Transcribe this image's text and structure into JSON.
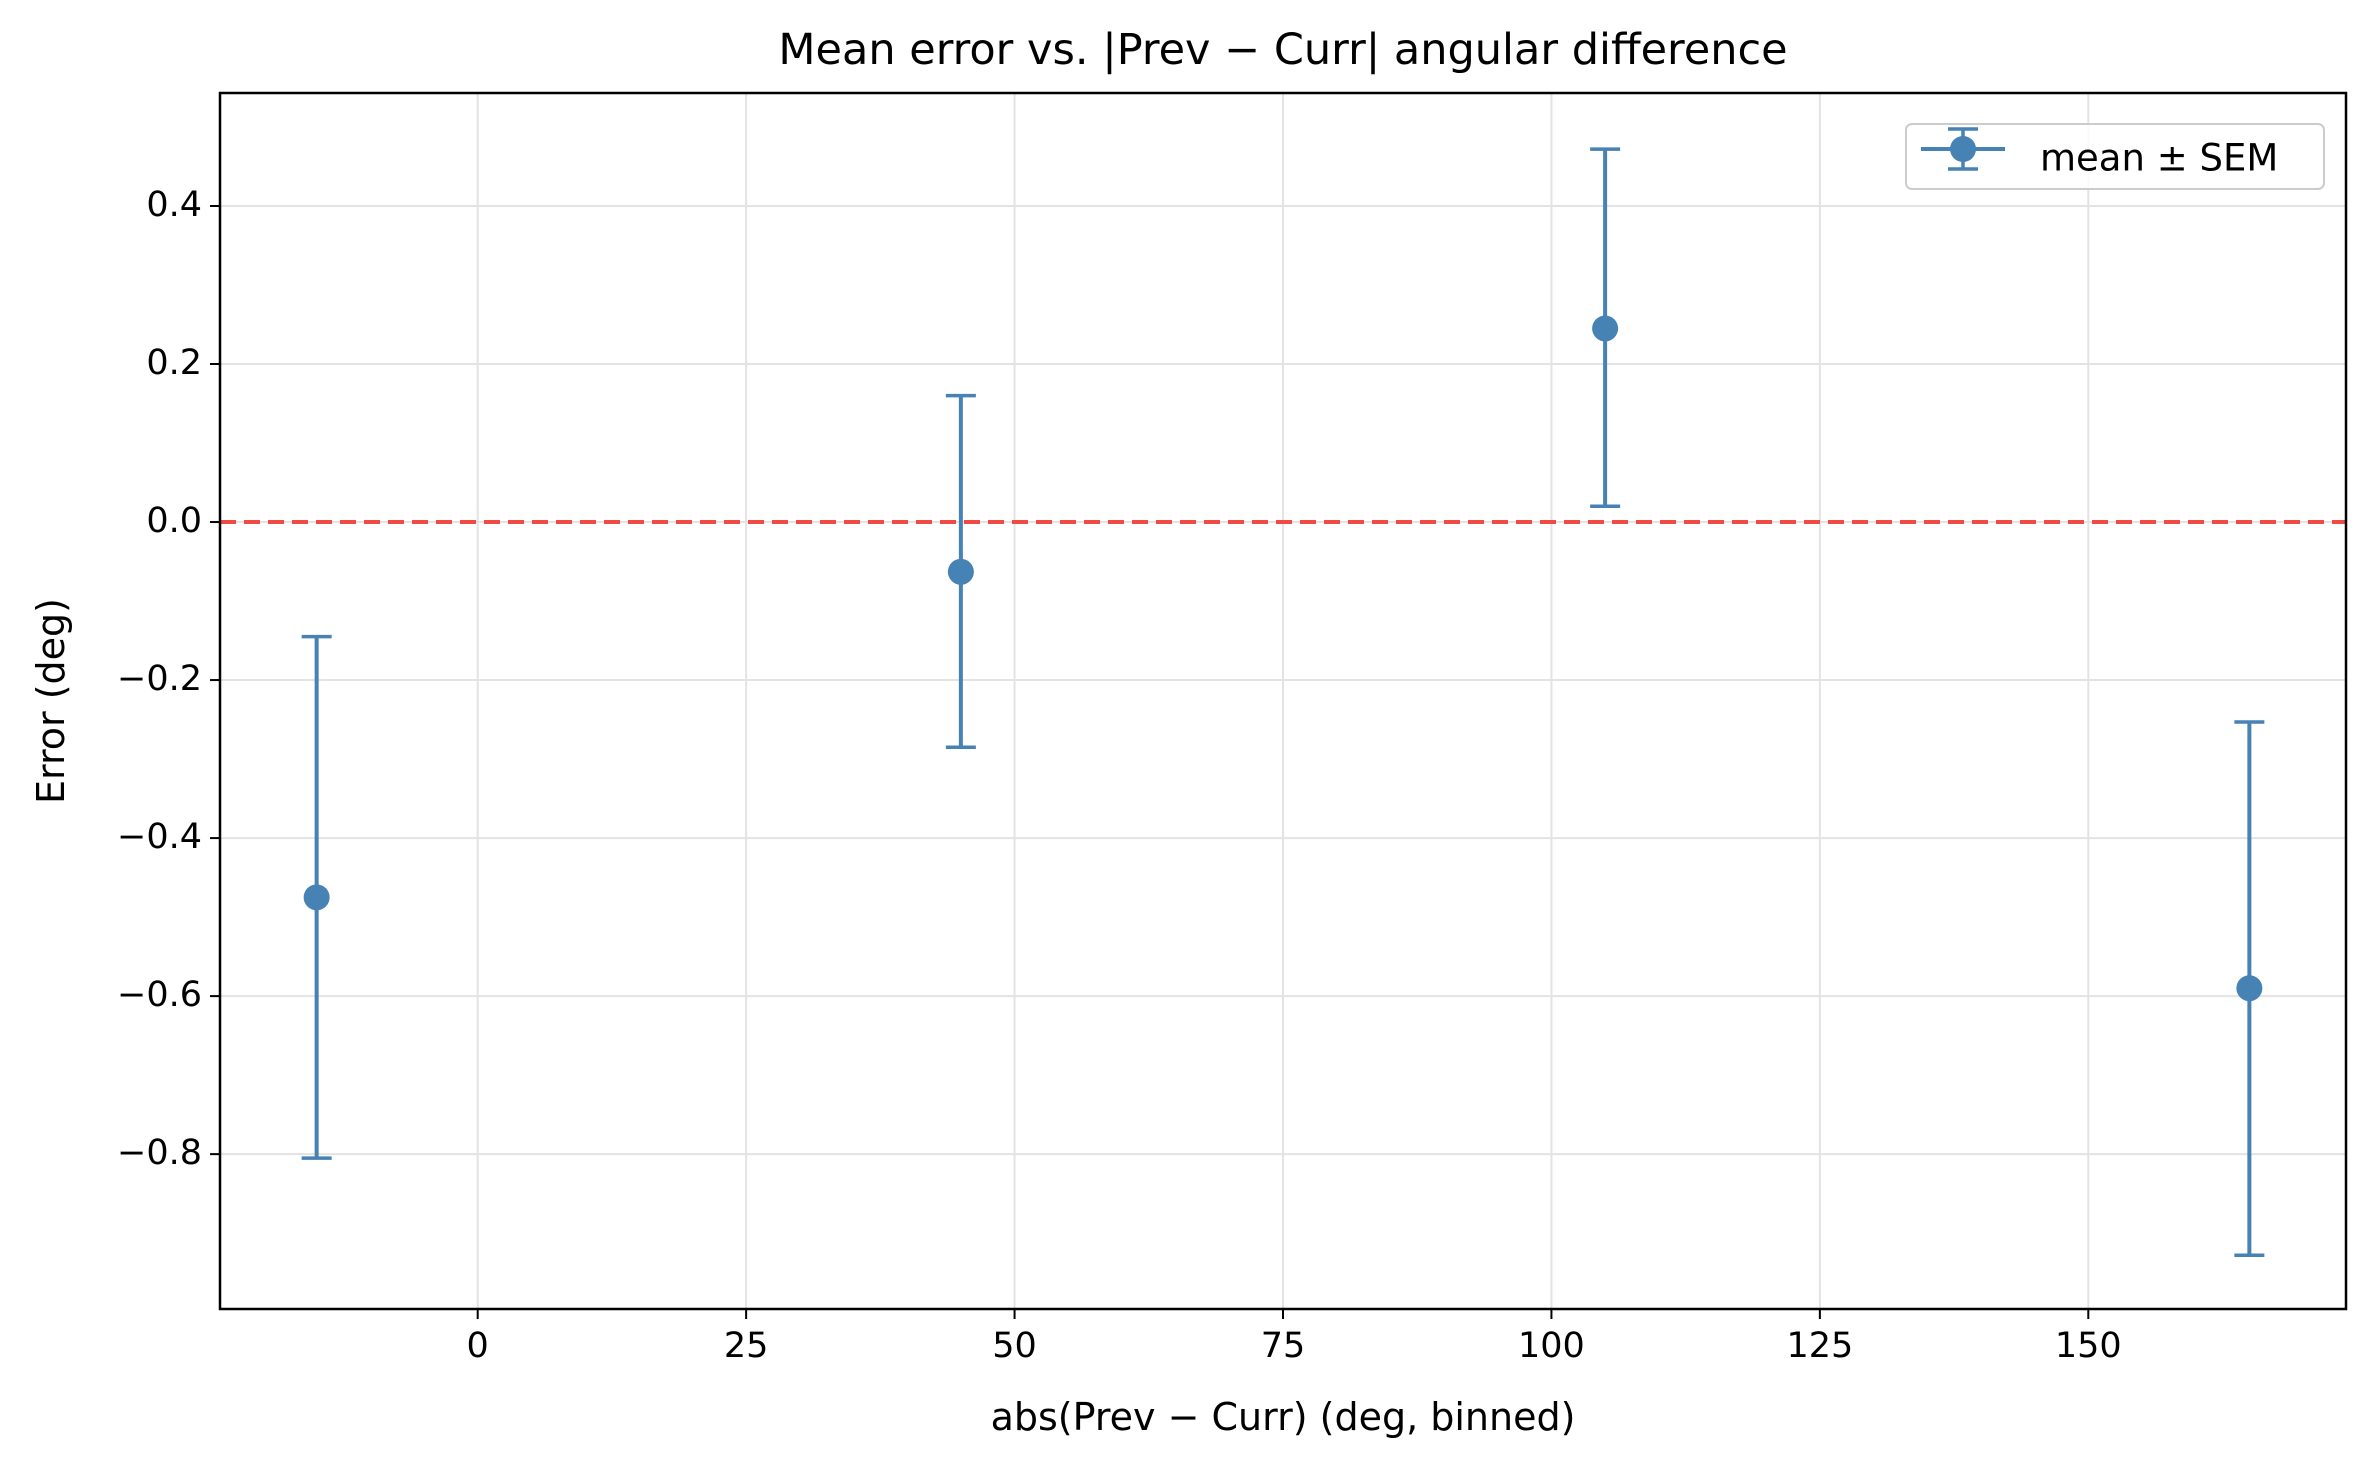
{
  "chart_data": {
    "type": "scatter",
    "title": "Mean error vs. |Prev − Curr| angular difference",
    "xlabel": "abs(Prev − Curr) (deg, binned)",
    "ylabel": "Error (deg)",
    "xlim": [
      -24,
      174
    ],
    "ylim": [
      -0.996,
      0.543
    ],
    "x_ticks": [
      0,
      25,
      50,
      75,
      100,
      125,
      150
    ],
    "x_tick_labels": [
      "0",
      "25",
      "50",
      "75",
      "100",
      "125",
      "150"
    ],
    "y_ticks": [
      0.4,
      0.2,
      0.0,
      -0.2,
      -0.4,
      -0.6,
      -0.8
    ],
    "y_tick_labels": [
      "0.4",
      "0.2",
      "0.0",
      "−0.2",
      "−0.4",
      "−0.6",
      "−0.8"
    ],
    "grid": true,
    "legend_position": "upper right",
    "series": [
      {
        "name": "mean ± SEM",
        "color": "#4682b4",
        "x": [
          -15,
          45,
          105,
          165
        ],
        "y": [
          -0.475,
          -0.063,
          0.245,
          -0.59
        ],
        "err_low": [
          -0.805,
          -0.285,
          0.02,
          -0.928
        ],
        "err_high": [
          -0.145,
          0.16,
          0.472,
          -0.253
        ]
      }
    ],
    "reference_line": {
      "y": 0.0,
      "color": "#f04a45",
      "style": "dashed"
    }
  }
}
